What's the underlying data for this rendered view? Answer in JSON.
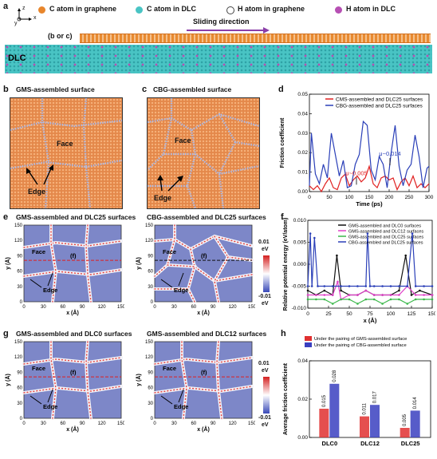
{
  "panel_a": {
    "letter": "a",
    "axis_z": "z",
    "axis_x": "x",
    "axis_y": "y",
    "legend": [
      {
        "label": "C atom in graphene",
        "color": "#e8862c"
      },
      {
        "label": "C atom in DLC",
        "color": "#49c4c4"
      },
      {
        "label": "H atom in graphene",
        "color": "#ffffff"
      },
      {
        "label": "H atom in DLC",
        "color": "#b64fb3"
      }
    ],
    "sliding_label": "Sliding direction",
    "bc_label": "(b or c)",
    "dlc_label": "DLC"
  },
  "panel_b": {
    "letter": "b",
    "title": "GMS-assembled surface",
    "face": "Face",
    "edge": "Edge"
  },
  "panel_c": {
    "letter": "c",
    "title": "CBG-assembled surface",
    "face": "Face",
    "edge": "Edge"
  },
  "panel_d": {
    "letter": "d",
    "chart_data": {
      "type": "line",
      "xlabel": "Time (ps)",
      "ylabel": "Friction coefficient",
      "xlim": [
        0,
        300
      ],
      "ylim": [
        0,
        0.05
      ],
      "xticks": [
        0,
        50,
        100,
        150,
        200,
        250,
        300
      ],
      "yticks": [
        "0.00",
        "0.01",
        "0.02",
        "0.03",
        "0.04",
        "0.05"
      ],
      "series": [
        {
          "name": "CMS-assembled and DLC25 surfaces",
          "color": "#e02020",
          "x": [
            0,
            10,
            20,
            30,
            40,
            50,
            60,
            70,
            80,
            90,
            100,
            110,
            120,
            130,
            140,
            150,
            160,
            170,
            180,
            190,
            200,
            210,
            220,
            230,
            240,
            250,
            260,
            270,
            280,
            290,
            300
          ],
          "y": [
            0.003,
            0.001,
            0.003,
            0.0,
            0.004,
            0.007,
            0.002,
            0.001,
            0.007,
            0.009,
            0.003,
            0.006,
            0.008,
            0.005,
            0.007,
            0.013,
            0.004,
            0.002,
            0.007,
            0.008,
            0.006,
            0.007,
            0.001,
            0.005,
            0.007,
            0.003,
            0.008,
            0.002,
            0.004,
            0.002,
            0.004
          ]
        },
        {
          "name": "CBG-assembled and DLC25 surfaces",
          "color": "#2a3fb8",
          "x": [
            0,
            5,
            15,
            25,
            35,
            45,
            55,
            65,
            75,
            85,
            95,
            105,
            115,
            125,
            135,
            145,
            155,
            165,
            175,
            185,
            195,
            205,
            215,
            225,
            235,
            245,
            255,
            265,
            275,
            285,
            295,
            300
          ],
          "y": [
            0.003,
            0.03,
            0.009,
            0.004,
            0.014,
            0.007,
            0.03,
            0.019,
            0.008,
            0.016,
            0.002,
            0.003,
            0.014,
            0.019,
            0.036,
            0.034,
            0.011,
            0.006,
            0.018,
            0.014,
            0.002,
            0.02,
            0.034,
            0.013,
            0.003,
            0.011,
            0.014,
            0.029,
            0.018,
            0.002,
            0.012,
            0.013
          ]
        }
      ],
      "annotations": [
        {
          "text": "μ~0.005",
          "x": 118,
          "y": 0.006,
          "color": "#e02020"
        },
        {
          "text": "μ~0.014",
          "x": 202,
          "y": 0.016,
          "color": "#2a3fb8"
        }
      ],
      "legend_position": "top-right"
    }
  },
  "panel_e": {
    "letter": "e",
    "title_left": "GMS-assembled and DLC25 surfaces",
    "title_right": "CBG-assembled and DLC25 surfaces",
    "face": "Face",
    "edge": "Edge",
    "f": "(f)",
    "xlabel": "x (Å)",
    "ylabel": "y (Å)",
    "ticks": [
      "0",
      "30",
      "60",
      "90",
      "120",
      "150"
    ],
    "cbar_max": "0.01",
    "cbar_min": "-0.01",
    "cbar_unit": "eV"
  },
  "panel_f": {
    "letter": "f",
    "chart_data": {
      "type": "line",
      "xlabel": "x (Å)",
      "ylabel": "Relative potential energy (eV/atom)",
      "xlim": [
        0,
        150
      ],
      "ylim": [
        -0.01,
        0.01
      ],
      "xticks": [
        0,
        25,
        50,
        75,
        100,
        125,
        150
      ],
      "yticks": [
        "0.010",
        "0.005",
        "0.000",
        "-0.005",
        "-0.010"
      ],
      "series": [
        {
          "name": "GMS-assembled and DLC0 surfaces",
          "color": "#111111",
          "x": [
            0,
            10,
            20,
            30,
            35,
            40,
            50,
            60,
            70,
            80,
            90,
            100,
            110,
            118,
            125,
            135,
            150
          ],
          "y": [
            -0.006,
            -0.007,
            -0.006,
            -0.007,
            0.002,
            -0.006,
            -0.007,
            -0.007,
            -0.006,
            -0.007,
            -0.007,
            -0.007,
            -0.006,
            0.002,
            -0.007,
            -0.006,
            -0.007
          ]
        },
        {
          "name": "GMS-assembled and DLC12 surfaces",
          "color": "#e040c8",
          "x": [
            0,
            10,
            20,
            30,
            36,
            40,
            50,
            60,
            70,
            80,
            90,
            100,
            110,
            120,
            130,
            140,
            150
          ],
          "y": [
            -0.007,
            -0.007,
            -0.007,
            -0.007,
            -0.004,
            -0.008,
            -0.007,
            -0.007,
            -0.006,
            -0.007,
            -0.007,
            -0.007,
            -0.007,
            -0.005,
            -0.007,
            -0.007,
            -0.007
          ]
        },
        {
          "name": "GMS-assembled and DLC25 surfaces",
          "color": "#3bb84a",
          "x": [
            0,
            10,
            20,
            30,
            40,
            50,
            60,
            70,
            80,
            90,
            100,
            110,
            120,
            130,
            140,
            150
          ],
          "y": [
            -0.008,
            -0.008,
            -0.008,
            -0.009,
            -0.008,
            -0.008,
            -0.009,
            -0.008,
            -0.008,
            -0.009,
            -0.008,
            -0.008,
            -0.009,
            -0.008,
            -0.008,
            -0.008
          ]
        },
        {
          "name": "CBG-assembled and DLC25 surfaces",
          "color": "#2a3fb8",
          "x": [
            0,
            3,
            5,
            8,
            12,
            20,
            30,
            40,
            50,
            60,
            70,
            72,
            75,
            80,
            90,
            100,
            110,
            120,
            126,
            130,
            140,
            150
          ],
          "y": [
            -0.005,
            0.007,
            -0.005,
            0.006,
            -0.005,
            -0.005,
            -0.005,
            -0.005,
            -0.005,
            -0.005,
            -0.005,
            0.007,
            -0.005,
            -0.005,
            -0.005,
            -0.005,
            -0.005,
            -0.005,
            0.007,
            -0.005,
            -0.005,
            -0.005
          ]
        }
      ],
      "legend_position": "top-right"
    }
  },
  "panel_g": {
    "letter": "g",
    "title_left": "GMS-assembled and DLC0 surfaces",
    "title_right": "GMS-assembled and DLC12 surfaces",
    "face": "Face",
    "edge": "Edge",
    "f": "(f)",
    "xlabel": "x (Å)",
    "ylabel": "y (Å)",
    "ticks": [
      "0",
      "30",
      "60",
      "90",
      "120",
      "150"
    ],
    "cbar_max": "0.01",
    "cbar_min": "-0.01",
    "cbar_unit": "eV"
  },
  "panel_h": {
    "letter": "h",
    "chart_data": {
      "type": "bar",
      "categories": [
        "DLC0",
        "DLC12",
        "DLC25"
      ],
      "ylabel": "Average friction coefficient",
      "ylim": [
        0,
        0.04
      ],
      "yticks": [
        "0.00",
        "0.02",
        "0.04"
      ],
      "series": [
        {
          "name": "Under the pairing of GMS-assembled surface",
          "color": "#e03030",
          "values": [
            0.015,
            0.011,
            0.005
          ],
          "labels": [
            "0.015",
            "0.011",
            "0.005"
          ]
        },
        {
          "name": "Under the pairing of CBG-assembled surface",
          "color": "#3a40c0",
          "values": [
            0.028,
            0.017,
            0.014
          ],
          "labels": [
            "0.028",
            "0.017",
            "0.014"
          ]
        }
      ],
      "legend_position": "top"
    }
  }
}
